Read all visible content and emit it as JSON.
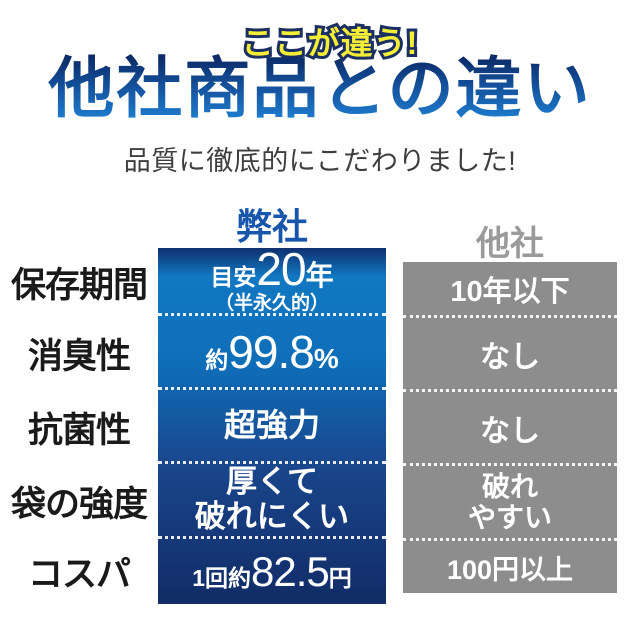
{
  "header": {
    "eyebrow": "ここが違う!",
    "title": "他社商品との違い",
    "subtitle": "品質に徹底的にこだわりました!"
  },
  "comparison": {
    "our_header": "弊社",
    "their_header": "他社",
    "rows": [
      {
        "label": "保存期間",
        "our_prefix": "目安",
        "our_value": "20",
        "our_unit": "年",
        "our_note": "（半永久的）",
        "their_value": "10年以下"
      },
      {
        "label": "消臭性",
        "our_prefix": "約",
        "our_value": "99.8",
        "our_unit": "%",
        "their_value": "なし"
      },
      {
        "label": "抗菌性",
        "our_text": "超強力",
        "their_value": "なし"
      },
      {
        "label": "袋の強度",
        "our_line1": "厚くて",
        "our_line2": "破れにくい",
        "their_line1": "破れ",
        "their_line2": "やすい"
      },
      {
        "label": "コスパ",
        "our_prefix": "1回約",
        "our_value": "82.5",
        "our_unit": "円",
        "their_value": "100円以上"
      }
    ]
  },
  "colors": {
    "eyebrow_yellow": "#f4ee35",
    "eyebrow_outline": "#1c2f63",
    "title_gradient_top": "#0c2c69",
    "title_gradient_bottom": "#1e7ecf",
    "our_column_bright": "#1178c2",
    "our_column_dark": "#112c66",
    "our_header_blue": "#1856ab",
    "their_column_gray": "#8d8d8d",
    "their_header_gray": "#9a9a9a",
    "label_black": "#1a1a1a",
    "subtitle_gray": "#3e3e3e"
  }
}
